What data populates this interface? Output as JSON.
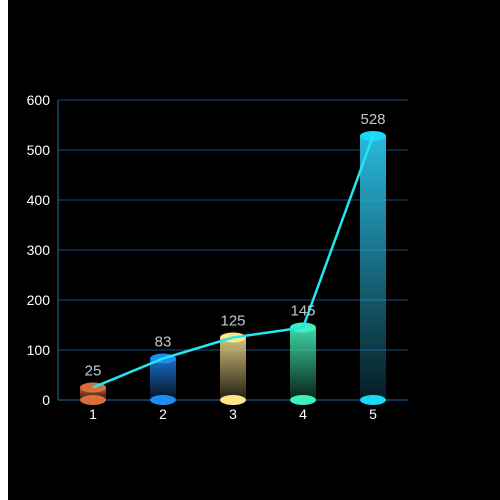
{
  "chart_data": {
    "type": "bar",
    "categories": [
      "1",
      "2",
      "3",
      "4",
      "5"
    ],
    "values": [
      25,
      83,
      125,
      145,
      528
    ],
    "line_values": [
      25,
      83,
      125,
      145,
      528
    ],
    "ylim": [
      0,
      600
    ],
    "yticks": [
      0,
      100,
      200,
      300,
      400,
      500,
      600
    ],
    "grid": true,
    "colors": {
      "background": "#000000",
      "axis": "#1f6fa8",
      "grid": "#1a4a7a",
      "line": "#22e7f0",
      "bar_bottoms": [
        "#d9703a",
        "#1e8cf0",
        "#ffe58a",
        "#3cf0c0",
        "#1cd8f8"
      ],
      "bar_tops": [
        "#c8643a",
        "#1b6ec8",
        "#d4c07a",
        "#3dd6a4",
        "#29b8dc"
      ]
    }
  }
}
